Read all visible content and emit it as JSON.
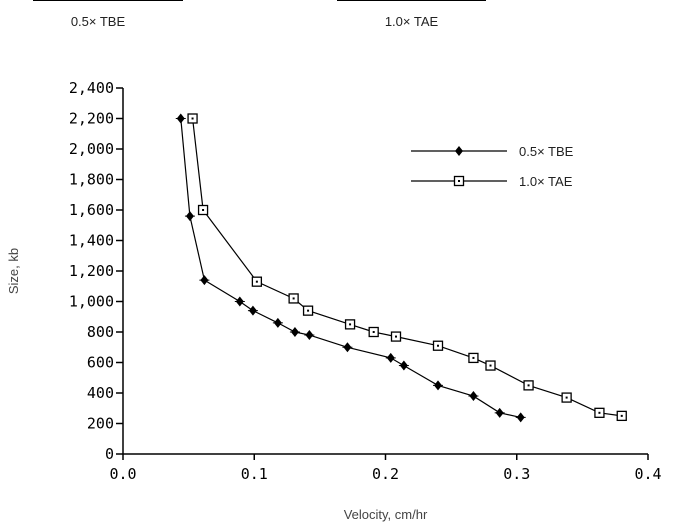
{
  "header": {
    "left_label": "0.5× TBE",
    "right_label": "1.0× TAE"
  },
  "chart_data": {
    "type": "line",
    "xlabel": "Velocity, cm/hr",
    "ylabel": "Size, kb",
    "xlim": [
      0.0,
      0.4
    ],
    "ylim": [
      0,
      2400
    ],
    "x_ticks": [
      0.0,
      0.1,
      0.2,
      0.3,
      0.4
    ],
    "x_tick_labels": [
      "0.0",
      "0.1",
      "0.2",
      "0.3",
      "0.4"
    ],
    "y_ticks": [
      0,
      200,
      400,
      600,
      800,
      1000,
      1200,
      1400,
      1600,
      1800,
      2000,
      2200,
      2400
    ],
    "y_tick_labels": [
      "0",
      "200",
      "400",
      "600",
      "800",
      "1,000",
      "1,200",
      "1,400",
      "1,600",
      "1,800",
      "2,000",
      "2,200",
      "2,400"
    ],
    "grid": false,
    "legend_position": "top-right",
    "series": [
      {
        "name": "0.5× TBE",
        "marker": "filled-diamond",
        "color": "#000000",
        "points": [
          [
            0.044,
            2200
          ],
          [
            0.051,
            1560
          ],
          [
            0.062,
            1140
          ],
          [
            0.089,
            1000
          ],
          [
            0.099,
            940
          ],
          [
            0.118,
            860
          ],
          [
            0.131,
            800
          ],
          [
            0.142,
            780
          ],
          [
            0.171,
            700
          ],
          [
            0.204,
            630
          ],
          [
            0.214,
            580
          ],
          [
            0.24,
            450
          ],
          [
            0.267,
            380
          ],
          [
            0.287,
            270
          ],
          [
            0.303,
            240
          ]
        ]
      },
      {
        "name": "1.0× TAE",
        "marker": "open-square",
        "color": "#000000",
        "points": [
          [
            0.053,
            2200
          ],
          [
            0.061,
            1600
          ],
          [
            0.102,
            1130
          ],
          [
            0.13,
            1020
          ],
          [
            0.141,
            940
          ],
          [
            0.173,
            850
          ],
          [
            0.191,
            800
          ],
          [
            0.208,
            770
          ],
          [
            0.24,
            710
          ],
          [
            0.267,
            630
          ],
          [
            0.28,
            580
          ],
          [
            0.309,
            450
          ],
          [
            0.338,
            370
          ],
          [
            0.363,
            270
          ],
          [
            0.38,
            250
          ]
        ]
      }
    ]
  }
}
